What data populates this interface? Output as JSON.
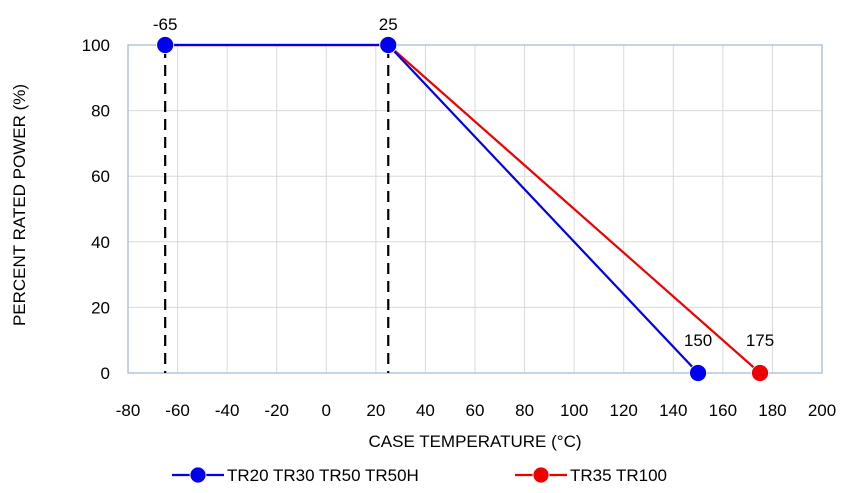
{
  "chart_data": {
    "type": "line",
    "xlabel": "CASE TEMPERATURE (°C)",
    "ylabel": "PERCENT RATED POWER (%)",
    "xlim": [
      -80,
      200
    ],
    "ylim": [
      0,
      100
    ],
    "xticks": [
      -80,
      -60,
      -40,
      -20,
      0,
      20,
      40,
      60,
      80,
      100,
      120,
      140,
      160,
      180,
      200
    ],
    "yticks": [
      0,
      20,
      40,
      60,
      80,
      100
    ],
    "grid": true,
    "legend_position": "bottom",
    "series": [
      {
        "name": "TR20 TR30 TR50 TR50H",
        "color": "#0000ee",
        "x": [
          -65,
          25,
          150
        ],
        "y": [
          100,
          100,
          0
        ]
      },
      {
        "name": "TR35 TR100",
        "color": "#ee0000",
        "x": [
          -65,
          25,
          175
        ],
        "y": [
          100,
          100,
          0
        ]
      }
    ],
    "annotations": [
      {
        "text": "-65",
        "x": -65,
        "y": 100
      },
      {
        "text": "25",
        "x": 25,
        "y": 100
      },
      {
        "text": "150",
        "x": 150,
        "y": 0
      },
      {
        "text": "175",
        "x": 175,
        "y": 0
      }
    ],
    "reference_lines": [
      {
        "x": -65,
        "from": 0,
        "to": 100,
        "style": "dashed"
      },
      {
        "x": 25,
        "from": 0,
        "to": 100,
        "style": "dashed"
      }
    ]
  }
}
